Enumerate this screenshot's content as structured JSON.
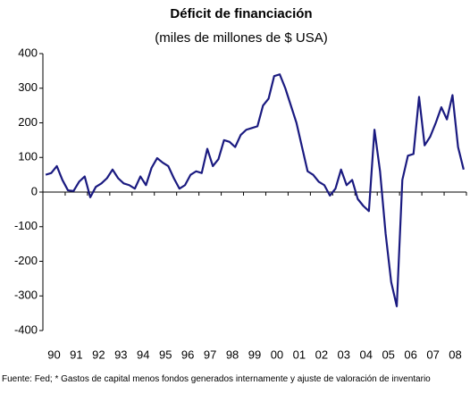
{
  "chart_data": {
    "type": "line",
    "title": "Déficit de financiación",
    "subtitle": "(miles de millones de $ USA)",
    "source": "Fuente: Fed; * Gastos de capital menos fondos generados internamente y ajuste de valoración de inventario",
    "categories": [
      "90",
      null,
      null,
      null,
      "91",
      null,
      null,
      null,
      "92",
      null,
      null,
      null,
      "93",
      null,
      null,
      null,
      "94",
      null,
      null,
      null,
      "95",
      null,
      null,
      null,
      "96",
      null,
      null,
      null,
      "97",
      null,
      null,
      null,
      "98",
      null,
      null,
      null,
      "99",
      null,
      null,
      null,
      "00",
      null,
      null,
      null,
      "01",
      null,
      null,
      null,
      "02",
      null,
      null,
      null,
      "03",
      null,
      null,
      null,
      "04",
      null,
      null,
      null,
      "05",
      null,
      null,
      null,
      "06",
      null,
      null,
      null,
      "07",
      null,
      null,
      null,
      "08",
      null,
      null,
      null
    ],
    "series": [
      {
        "color": "#1a1a80",
        "values": [
          50,
          55,
          75,
          35,
          5,
          3,
          30,
          45,
          -15,
          15,
          25,
          40,
          65,
          40,
          25,
          20,
          10,
          45,
          20,
          70,
          98,
          85,
          75,
          40,
          10,
          20,
          50,
          60,
          55,
          125,
          75,
          95,
          150,
          145,
          130,
          165,
          180,
          185,
          190,
          250,
          270,
          335,
          340,
          300,
          250,
          200,
          130,
          60,
          50,
          30,
          20,
          -10,
          10,
          65,
          20,
          35,
          -20,
          -40,
          -55,
          180,
          60,
          -120,
          -260,
          -330,
          35,
          105,
          110,
          275,
          135,
          160,
          200,
          245,
          210,
          280,
          130,
          65
        ]
      }
    ],
    "ylim": [
      -400,
      400
    ],
    "yticks": [
      -400,
      -300,
      -200,
      -100,
      0,
      100,
      200,
      300,
      400
    ],
    "grid": false
  }
}
